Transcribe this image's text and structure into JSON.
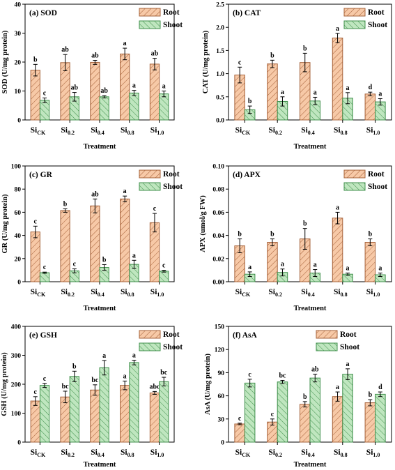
{
  "colors": {
    "root": "#f7c9a7",
    "root_stroke": "#a6623a",
    "shoot": "#bfe6bf",
    "shoot_stroke": "#3f8f4b"
  },
  "chart_data": [
    {
      "type": "bar",
      "title": "(a) SOD",
      "ylabel": "SOD (U/mg protein)",
      "xlabel": "Treatment",
      "ylim": [
        0,
        40
      ],
      "yticks": [
        "0",
        "10",
        "20",
        "30",
        "40"
      ],
      "legend": "top-right",
      "categories": [
        {
          "base": "Si",
          "sub": "CK"
        },
        {
          "base": "Si",
          "sub": "0.2"
        },
        {
          "base": "Si",
          "sub": "0.4"
        },
        {
          "base": "Si",
          "sub": "0.8"
        },
        {
          "base": "Si",
          "sub": "1.0"
        }
      ],
      "series": [
        {
          "name": "Root",
          "values": [
            17.2,
            19.8,
            19.9,
            22.8,
            19.3
          ],
          "errors": [
            2.0,
            2.8,
            0.7,
            2.0,
            2.0
          ],
          "labels": [
            "b",
            "ab",
            "ab",
            "a",
            "ab"
          ]
        },
        {
          "name": "Shoot",
          "values": [
            6.8,
            8.0,
            8.0,
            9.3,
            9.0
          ],
          "errors": [
            0.8,
            1.5,
            0.4,
            0.9,
            1.0
          ],
          "labels": [
            "c",
            "ab",
            "ab",
            "a",
            "a"
          ]
        }
      ]
    },
    {
      "type": "bar",
      "title": "(b) CAT",
      "ylabel": "CAT (U/mg protein)",
      "xlabel": "Treatment",
      "ylim": [
        0,
        2.5
      ],
      "yticks": [
        "0.0",
        "0.5",
        "1.0",
        "1.5",
        "2.0",
        "2.5"
      ],
      "legend": "top-right",
      "categories": [
        {
          "base": "Si",
          "sub": "CK"
        },
        {
          "base": "Si",
          "sub": "0.2"
        },
        {
          "base": "Si",
          "sub": "0.4"
        },
        {
          "base": "Si",
          "sub": "0.8"
        },
        {
          "base": "Si",
          "sub": "1.0"
        }
      ],
      "series": [
        {
          "name": "Root",
          "values": [
            0.97,
            1.21,
            1.24,
            1.77,
            0.56
          ],
          "errors": [
            0.17,
            0.08,
            0.2,
            0.1,
            0.04
          ],
          "labels": [
            "c",
            "b",
            "b",
            "a",
            "d"
          ]
        },
        {
          "name": "Shoot",
          "values": [
            0.22,
            0.4,
            0.41,
            0.47,
            0.39
          ],
          "errors": [
            0.08,
            0.1,
            0.08,
            0.12,
            0.07
          ],
          "labels": [
            "b",
            "a",
            "a",
            "a",
            "a"
          ]
        }
      ]
    },
    {
      "type": "bar",
      "title": "(c) GR",
      "ylabel": "GR (U/mg protein)",
      "xlabel": "Treatment",
      "ylim": [
        0,
        100
      ],
      "yticks": [
        "0",
        "20",
        "40",
        "60",
        "80",
        "100"
      ],
      "legend": "top-right",
      "categories": [
        {
          "base": "Si",
          "sub": "CK"
        },
        {
          "base": "Si",
          "sub": "0.2"
        },
        {
          "base": "Si",
          "sub": "0.4"
        },
        {
          "base": "Si",
          "sub": "0.8"
        },
        {
          "base": "Si",
          "sub": "1.0"
        }
      ],
      "series": [
        {
          "name": "Root",
          "values": [
            43,
            61.5,
            65.5,
            71.5,
            51
          ],
          "errors": [
            5,
            1.5,
            6,
            2.5,
            8
          ],
          "labels": [
            "c",
            "b",
            "ab",
            "a",
            "c"
          ]
        },
        {
          "name": "Shoot",
          "values": [
            7.8,
            9.4,
            12.3,
            15,
            9.1
          ],
          "errors": [
            0.5,
            1.7,
            2.5,
            3.5,
            0.8
          ],
          "labels": [
            "c",
            "c",
            "b",
            "a",
            "c"
          ]
        }
      ]
    },
    {
      "type": "bar",
      "title": "(d) APX",
      "ylabel": "APX (umol/g FW)",
      "xlabel": "Treatment",
      "ylim": [
        0,
        0.1
      ],
      "yticks": [
        "0.00",
        "0.02",
        "0.04",
        "0.06",
        "0.08",
        "0.10"
      ],
      "legend": "top-right",
      "categories": [
        {
          "base": "Si",
          "sub": "CK"
        },
        {
          "base": "Si",
          "sub": "0.2"
        },
        {
          "base": "Si",
          "sub": "0.4"
        },
        {
          "base": "Si",
          "sub": "0.8"
        },
        {
          "base": "Si",
          "sub": "1.0"
        }
      ],
      "series": [
        {
          "name": "Root",
          "values": [
            0.031,
            0.034,
            0.037,
            0.055,
            0.034
          ],
          "errors": [
            0.006,
            0.003,
            0.009,
            0.005,
            0.003
          ],
          "labels": [
            "b",
            "b",
            "b",
            "a",
            "b"
          ]
        },
        {
          "name": "Shoot",
          "values": [
            0.0065,
            0.008,
            0.0075,
            0.0065,
            0.006
          ],
          "errors": [
            0.002,
            0.003,
            0.003,
            0.001,
            0.0015
          ],
          "labels": [
            "a",
            "a",
            "a",
            "a",
            "a"
          ]
        }
      ]
    },
    {
      "type": "bar",
      "title": "(e) GSH",
      "ylabel": "GSH (U/mg protein)",
      "xlabel": "Treatment",
      "ylim": [
        0,
        400
      ],
      "yticks": [
        "0",
        "100",
        "200",
        "300",
        "400"
      ],
      "legend": "top-right",
      "categories": [
        {
          "base": "Si",
          "sub": "CK"
        },
        {
          "base": "Si",
          "sub": "0.2"
        },
        {
          "base": "Si",
          "sub": "0.4"
        },
        {
          "base": "Si",
          "sub": "0.8"
        },
        {
          "base": "Si",
          "sub": "1.0"
        }
      ],
      "series": [
        {
          "name": "Root",
          "values": [
            142,
            156,
            180,
            196,
            170
          ],
          "errors": [
            15,
            20,
            18,
            15,
            5
          ],
          "labels": [
            "c",
            "bc",
            "bc",
            "a",
            "abc"
          ]
        },
        {
          "name": "Shoot",
          "values": [
            196,
            227,
            257,
            275,
            209
          ],
          "errors": [
            7,
            18,
            25,
            8,
            15
          ],
          "labels": [
            "c",
            "b",
            "a",
            "a",
            "bc"
          ]
        }
      ]
    },
    {
      "type": "bar",
      "title": "(f) AsA",
      "ylabel": "AsA (U/mg protein)",
      "xlabel": "Treatment",
      "ylim": [
        0,
        150
      ],
      "yticks": [
        "0",
        "30",
        "60",
        "90",
        "120",
        "150"
      ],
      "legend": "top-center",
      "categories": [
        {
          "base": "Si",
          "sub": "CK"
        },
        {
          "base": "Si",
          "sub": "0.2"
        },
        {
          "base": "Si",
          "sub": "0.4"
        },
        {
          "base": "Si",
          "sub": "0.8"
        },
        {
          "base": "Si",
          "sub": "1.0"
        }
      ],
      "series": [
        {
          "name": "Root",
          "values": [
            23.5,
            26,
            49,
            59,
            51
          ],
          "errors": [
            1,
            4,
            3.5,
            6,
            4
          ],
          "labels": [
            "c",
            "c",
            "b",
            "a",
            "b"
          ]
        },
        {
          "name": "Shoot",
          "values": [
            76.5,
            78,
            83,
            88,
            62
          ],
          "errors": [
            5,
            2,
            5,
            7,
            3
          ],
          "labels": [
            "c",
            "bc",
            "ab",
            "a",
            "d"
          ]
        }
      ]
    }
  ]
}
